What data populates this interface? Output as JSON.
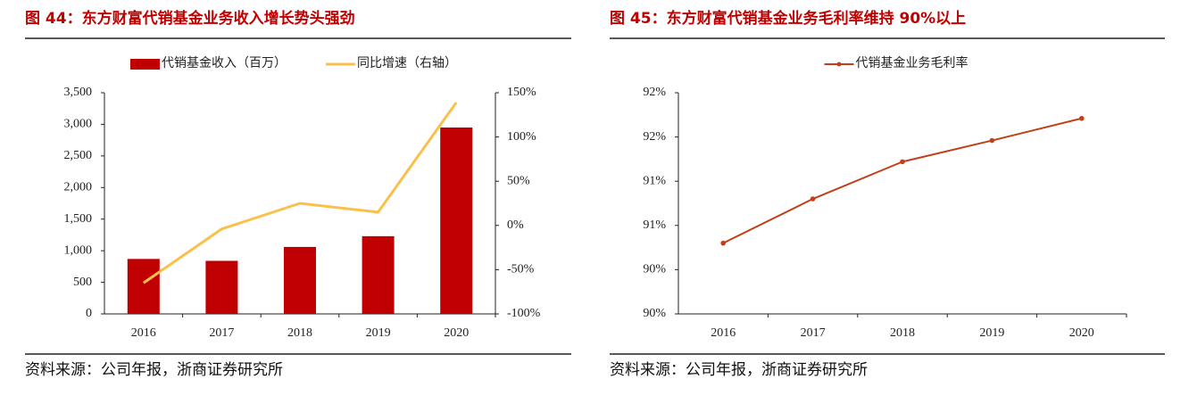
{
  "chart_data": [
    {
      "type": "bar",
      "title": "图 44：东方财富代销基金业务收入增长势头强劲",
      "source": "资料来源：公司年报，浙商证券研究所",
      "categories": [
        "2016",
        "2017",
        "2018",
        "2019",
        "2020"
      ],
      "series": [
        {
          "name": "代销基金收入（百万）",
          "type": "bar",
          "color": "#c00000",
          "values": [
            870,
            840,
            1060,
            1230,
            2950
          ]
        },
        {
          "name": "同比增速（右轴）",
          "type": "line",
          "axis": "y2",
          "color": "#fbc04c",
          "values": [
            -65,
            -4,
            25,
            15,
            139
          ]
        }
      ],
      "ylim": [
        0,
        3500
      ],
      "yticks": [
        0,
        500,
        {
          "value": 1000,
          "label": "1,000"
        },
        {
          "value": 1500,
          "label": "1,500"
        },
        {
          "value": 2000,
          "label": "2,000"
        },
        {
          "value": 2500,
          "label": "2,500"
        },
        {
          "value": 3000,
          "label": "3,000"
        },
        {
          "value": 3500,
          "label": "3,500"
        }
      ],
      "y2lim": [
        -100,
        150
      ],
      "y2ticks": [
        {
          "value": -100,
          "label": "-100%"
        },
        {
          "value": -50,
          "label": "-50%"
        },
        {
          "value": 0,
          "label": "0%"
        },
        {
          "value": 50,
          "label": "50%"
        },
        {
          "value": 100,
          "label": "100%"
        },
        {
          "value": 150,
          "label": "150%"
        }
      ],
      "grid": false
    },
    {
      "type": "line",
      "title": "图 45：东方财富代销基金业务毛利率维持 90%以上",
      "source": "资料来源：公司年报，浙商证券研究所",
      "categories": [
        "2016",
        "2017",
        "2018",
        "2019",
        "2020"
      ],
      "series": [
        {
          "name": "代销基金业务毛利率",
          "color": "#c0401a",
          "values": [
            90.3,
            90.8,
            91.22,
            91.46,
            91.71
          ]
        }
      ],
      "ylim": [
        89.5,
        92
      ],
      "yticks": [
        {
          "value": 89.5,
          "label": "90%"
        },
        {
          "value": 90,
          "label": "90%"
        },
        {
          "value": 90.5,
          "label": "91%"
        },
        {
          "value": 91,
          "label": "91%"
        },
        {
          "value": 91.5,
          "label": "92%"
        },
        {
          "value": 92,
          "label": "92%"
        }
      ],
      "grid": false
    }
  ]
}
